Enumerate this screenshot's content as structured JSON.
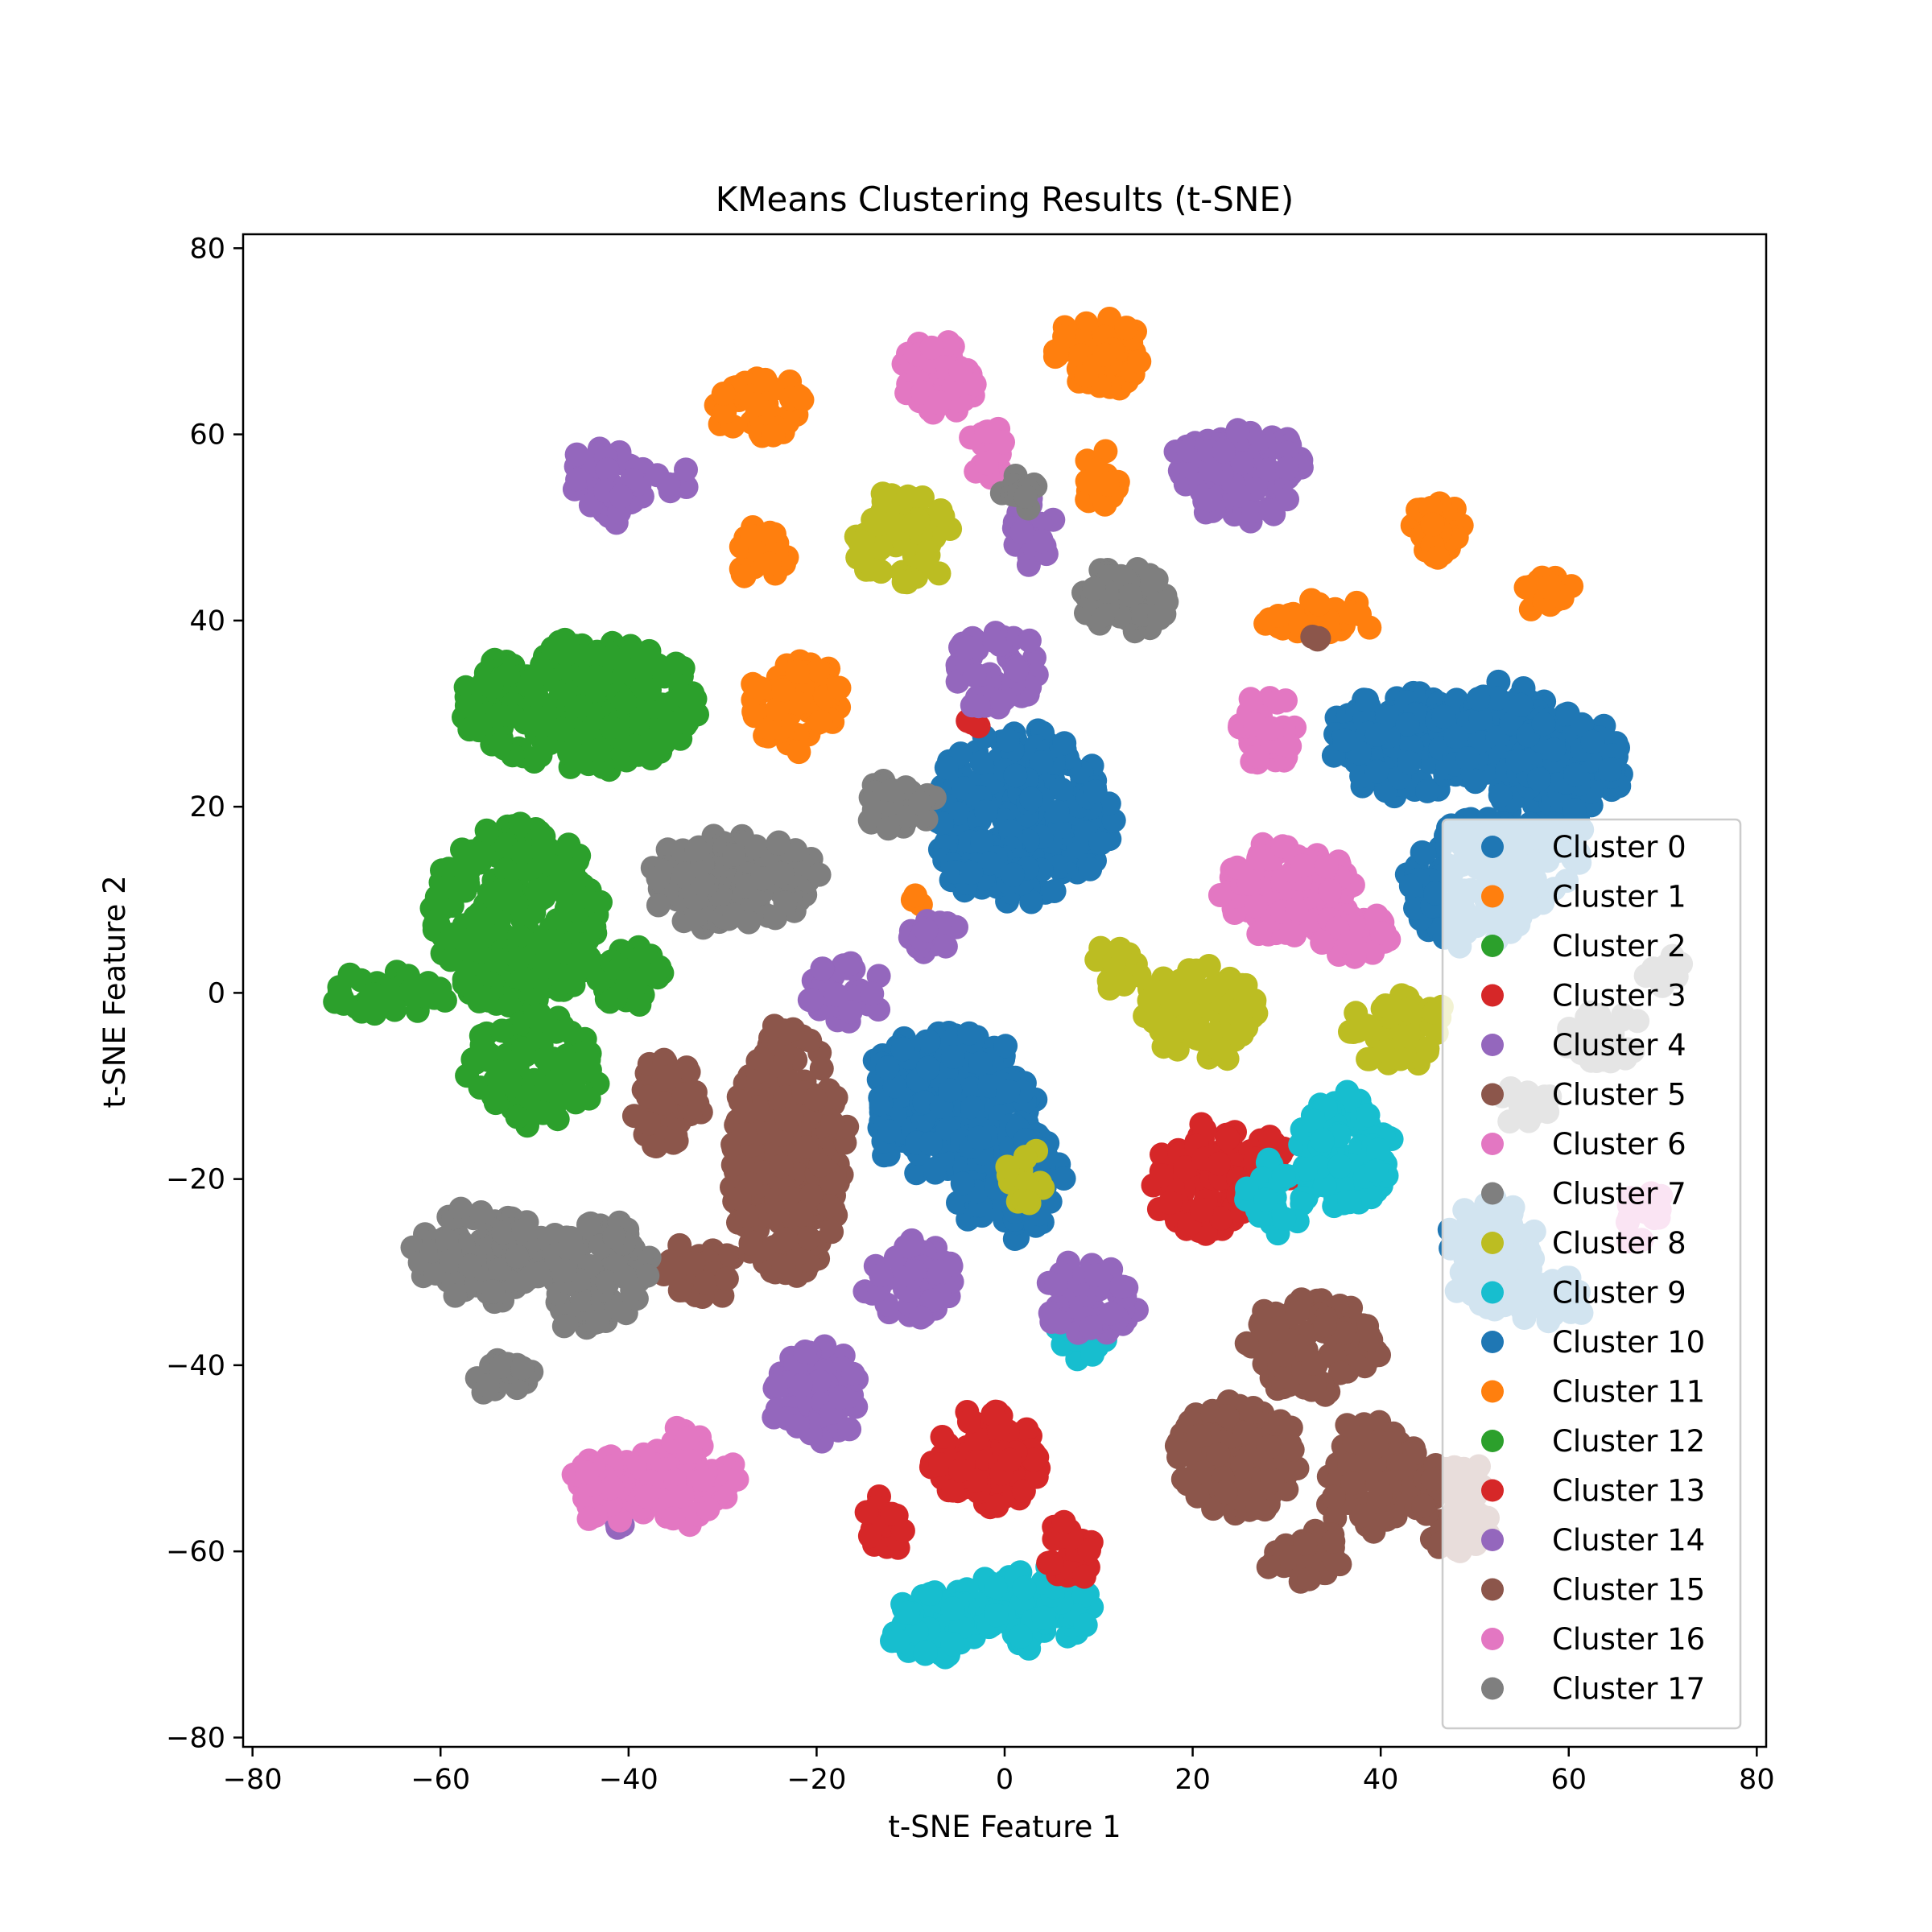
{
  "chart_data": {
    "type": "scatter",
    "title": "KMeans Clustering Results (t-SNE)",
    "xlabel": "t-SNE Feature 1",
    "ylabel": "t-SNE Feature 2",
    "xlim": [
      -81,
      81
    ],
    "ylim": [
      -81,
      81.5
    ],
    "xticks": [
      -80,
      -60,
      -40,
      -20,
      0,
      20,
      40,
      60,
      80
    ],
    "yticks": [
      -80,
      -60,
      -40,
      -20,
      0,
      20,
      40,
      60,
      80
    ],
    "xtick_labels": [
      "−80",
      "−60",
      "−40",
      "−20",
      "0",
      "20",
      "40",
      "60",
      "80"
    ],
    "ytick_labels": [
      "−80",
      "−60",
      "−40",
      "−20",
      "0",
      "20",
      "40",
      "60",
      "80"
    ],
    "grid": false,
    "legend_position": "lower-right",
    "series": [
      {
        "name": "Cluster 0",
        "color": "#1f77b4",
        "blobs": [
          [
            2,
            19,
            10,
            9
          ],
          [
            -2,
            14,
            5,
            3
          ],
          [
            -6,
            -12,
            9,
            8
          ],
          [
            0,
            -20,
            6,
            6
          ],
          [
            42,
            27,
            7,
            6
          ],
          [
            52,
            28,
            6,
            6
          ],
          [
            57,
            18,
            5,
            8
          ],
          [
            60,
            25,
            6,
            5
          ],
          [
            50,
            12,
            7,
            7
          ]
        ]
      },
      {
        "name": "Cluster 1",
        "color": "#ff7f0e",
        "blobs": [
          [
            -22,
            31,
            5,
            5
          ],
          [
            -26,
            63,
            5,
            3
          ],
          [
            10,
            69,
            5,
            4
          ],
          [
            -26,
            47,
            3,
            3
          ],
          [
            10,
            55,
            2,
            3
          ],
          [
            46,
            50,
            3,
            3
          ],
          [
            57,
            43,
            3,
            2
          ],
          [
            33,
            40,
            6,
            2
          ],
          [
            -9,
            10,
            1,
            1
          ]
        ]
      },
      {
        "name": "Cluster 2",
        "color": "#2ca02c",
        "blobs": [
          [
            -45,
            31,
            13,
            7
          ],
          [
            -52,
            8,
            9,
            10
          ],
          [
            -50,
            -8,
            7,
            6
          ],
          [
            -66,
            0,
            6,
            2
          ],
          [
            -40,
            2,
            4,
            3
          ]
        ]
      },
      {
        "name": "Cluster 3",
        "color": "#d62728",
        "blobs": [
          [
            21,
            -20,
            5,
            6
          ],
          [
            28,
            -18,
            3,
            3
          ],
          [
            -3,
            29,
            1,
            1
          ]
        ]
      },
      {
        "name": "Cluster 4",
        "color": "#9467bd",
        "blobs": [
          [
            -42,
            55,
            4,
            4
          ],
          [
            -1,
            35,
            5,
            4
          ],
          [
            -17,
            0,
            4,
            3
          ],
          [
            -8,
            6,
            3,
            2
          ],
          [
            -35,
            55,
            2,
            1
          ],
          [
            3,
            49,
            2,
            4
          ]
        ]
      },
      {
        "name": "Cluster 5",
        "color": "#8c564b",
        "blobs": [
          [
            -23,
            -17,
            6,
            14
          ],
          [
            -36,
            -12,
            4,
            5
          ],
          [
            -32,
            -30,
            4,
            3
          ],
          [
            33,
            -38,
            7,
            5
          ],
          [
            25,
            -50,
            7,
            6
          ],
          [
            39,
            -52,
            5,
            6
          ],
          [
            32,
            -60,
            4,
            3
          ]
        ]
      },
      {
        "name": "Cluster 6",
        "color": "#e377c2",
        "blobs": [
          [
            -7,
            66,
            4,
            4
          ],
          [
            -2,
            58,
            2,
            3
          ],
          [
            28,
            28,
            3,
            4
          ],
          [
            30,
            11,
            7,
            5
          ],
          [
            37,
            6,
            4,
            3
          ]
        ]
      },
      {
        "name": "Cluster 7",
        "color": "#7f7f7f",
        "blobs": [
          [
            -29,
            12,
            9,
            5
          ],
          [
            -11,
            20,
            4,
            3
          ],
          [
            13,
            42,
            5,
            4
          ],
          [
            2,
            54,
            2,
            2
          ]
        ]
      },
      {
        "name": "Cluster 8",
        "color": "#bcbd22",
        "blobs": [
          [
            -11,
            49,
            5,
            5
          ],
          [
            21,
            -2,
            6,
            5
          ],
          [
            12,
            3,
            3,
            2
          ],
          [
            42,
            -4,
            5,
            4
          ],
          [
            2,
            -20,
            2,
            3
          ]
        ]
      },
      {
        "name": "Cluster 9",
        "color": "#17becf",
        "blobs": [
          [
            36,
            -17,
            5,
            6
          ],
          [
            29,
            -22,
            3,
            4
          ],
          [
            2,
            -66,
            8,
            4
          ],
          [
            -8,
            -68,
            4,
            4
          ],
          [
            8,
            -37,
            3,
            2
          ]
        ]
      },
      {
        "name": "Cluster 10",
        "color": "#1f77b4",
        "blobs": [
          [
            52,
            -28,
            5,
            6
          ],
          [
            58,
            -33,
            4,
            3
          ]
        ]
      },
      {
        "name": "Cluster 11",
        "color": "#ff7f0e",
        "blobs": []
      },
      {
        "name": "Cluster 12",
        "color": "#2ca02c",
        "blobs": []
      },
      {
        "name": "Cluster 13",
        "color": "#d62728",
        "blobs": [
          [
            -2,
            -50,
            6,
            5
          ],
          [
            -13,
            -57,
            2,
            3
          ],
          [
            7,
            -60,
            3,
            3
          ]
        ]
      },
      {
        "name": "Cluster 14",
        "color": "#9467bd",
        "blobs": [
          [
            -41,
            -57,
            0,
            0
          ],
          [
            25,
            56,
            7,
            5
          ],
          [
            -10,
            -31,
            5,
            4
          ],
          [
            -20,
            -43,
            5,
            5
          ],
          [
            9,
            -33,
            5,
            4
          ]
        ]
      },
      {
        "name": "Cluster 15",
        "color": "#8c564b",
        "blobs": [
          [
            48,
            -55,
            4,
            5
          ],
          [
            33,
            38,
            0,
            0
          ]
        ]
      },
      {
        "name": "Cluster 16",
        "color": "#e377c2",
        "blobs": [
          [
            -35,
            -52,
            6,
            5
          ],
          [
            -43,
            -53,
            3,
            4
          ],
          [
            68,
            -24,
            2,
            3
          ]
        ]
      },
      {
        "name": "Cluster 17",
        "color": "#7f7f7f",
        "blobs": [
          [
            -56,
            -28,
            7,
            5
          ],
          [
            -44,
            -30,
            6,
            6
          ],
          [
            -53,
            -41,
            3,
            2
          ],
          [
            64,
            -5,
            4,
            3
          ],
          [
            55,
            -12,
            3,
            2
          ],
          [
            70,
            3,
            2,
            2
          ]
        ]
      }
    ]
  }
}
